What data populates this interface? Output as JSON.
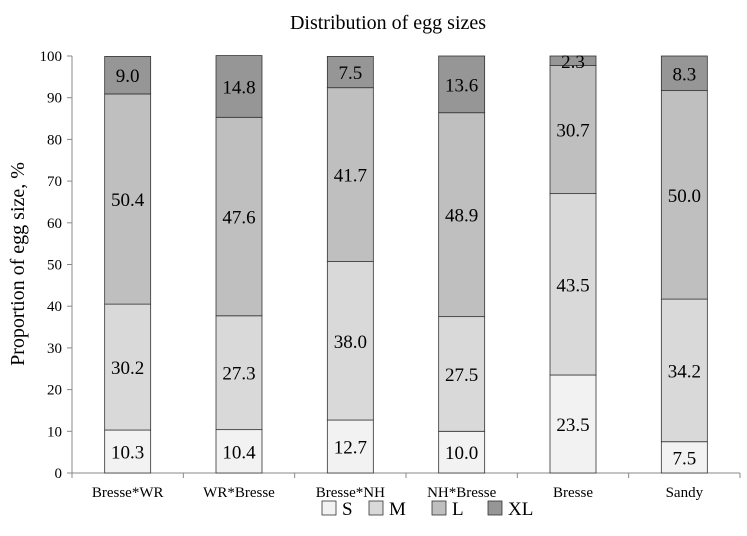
{
  "chart_data": {
    "type": "bar",
    "stacked": true,
    "title": "Distribution of egg sizes",
    "xlabel": "",
    "ylabel": "Proportion of egg size, %",
    "ylim": [
      0,
      100
    ],
    "yticks": [
      0,
      10,
      20,
      30,
      40,
      50,
      60,
      70,
      80,
      90,
      100
    ],
    "categories": [
      "Bresse*WR",
      "WR*Bresse",
      "Bresse*NH",
      "NH*Bresse",
      "Bresse",
      "Sandy"
    ],
    "series": [
      {
        "name": "S",
        "color": "#f2f2f2",
        "values": [
          10.3,
          10.4,
          12.7,
          10.0,
          23.5,
          7.5
        ]
      },
      {
        "name": "M",
        "color": "#d9d9d9",
        "values": [
          30.2,
          27.3,
          38.0,
          27.5,
          43.5,
          34.2
        ]
      },
      {
        "name": "L",
        "color": "#bfbfbf",
        "values": [
          50.4,
          47.6,
          41.7,
          48.9,
          30.7,
          50.0
        ]
      },
      {
        "name": "XL",
        "color": "#969696",
        "values": [
          9.0,
          14.8,
          7.5,
          13.6,
          2.3,
          8.3
        ]
      }
    ],
    "data_labels": [
      [
        "10.3",
        "10.4",
        "12.7",
        "10.0",
        "23.5",
        "7.5"
      ],
      [
        "30.2",
        "27.3",
        "38.0",
        "27.5",
        "43.5",
        "34.2"
      ],
      [
        "50.4",
        "47.6",
        "41.7",
        "48.9",
        "30.7",
        "50.0"
      ],
      [
        "9.0",
        "14.8",
        "7.5",
        "13.6",
        "2.3",
        "8.3"
      ]
    ],
    "grid": false,
    "legend": "bottom"
  }
}
